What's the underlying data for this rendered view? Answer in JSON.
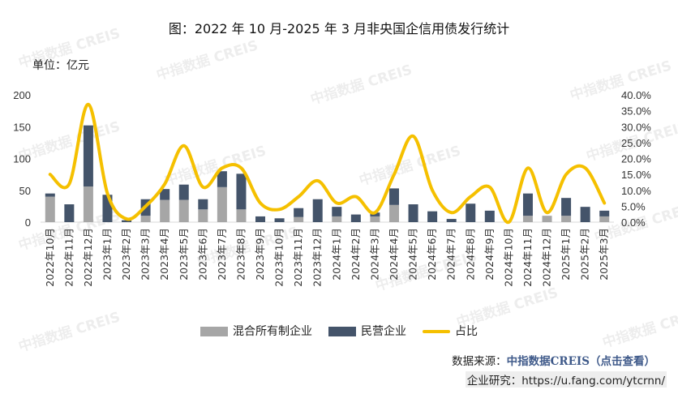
{
  "title": "图：2022 年 10 月-2025 年 3 月非央国企信用债发行统计",
  "unit_label": "单位：亿元",
  "watermark": "中指数据 CREIS",
  "chart_data": {
    "type": "bar+line",
    "title": "图：2022 年 10 月-2025 年 3 月非央国企信用债发行统计",
    "categories": [
      "2022年10月",
      "2022年11月",
      "2022年12月",
      "2023年1月",
      "2023年2月",
      "2023年3月",
      "2023年4月",
      "2023年5月",
      "2023年6月",
      "2023年7月",
      "2023年8月",
      "2023年9月",
      "2023年10月",
      "2023年11月",
      "2023年12月",
      "2024年1月",
      "2024年2月",
      "2024年3月",
      "2024年4月",
      "2024年5月",
      "2024年6月",
      "2024年7月",
      "2024年8月",
      "2024年9月",
      "2024年10月",
      "2024年11月",
      "2024年12月",
      "2025年1月",
      "2025年2月",
      "2025年3月"
    ],
    "series": [
      {
        "name": "混合所有制企业",
        "type": "stacked-bar",
        "axis": "left",
        "color": "#a6a6a6",
        "values": [
          40,
          0,
          56,
          0,
          0,
          10,
          35,
          35,
          20,
          55,
          20,
          0,
          0,
          8,
          0,
          9,
          0,
          9,
          27,
          0,
          0,
          0,
          0,
          0,
          0,
          10,
          10,
          10,
          0,
          9
        ]
      },
      {
        "name": "民营企业",
        "type": "stacked-bar",
        "axis": "left",
        "color": "#44546a",
        "values": [
          5,
          28,
          96,
          43,
          3,
          26,
          17,
          24,
          16,
          25,
          56,
          9,
          6,
          14,
          36,
          15,
          12,
          6,
          26,
          28,
          17,
          5,
          29,
          18,
          0,
          35,
          0,
          28,
          24,
          9
        ]
      },
      {
        "name": "占比",
        "type": "line",
        "axis": "right",
        "color": "#f5c000",
        "values": [
          15,
          12,
          37,
          9,
          1,
          5,
          12,
          24,
          11,
          17,
          17,
          6,
          4,
          8,
          13,
          6,
          8,
          3,
          15,
          27,
          10,
          3,
          8,
          11,
          0,
          17,
          3,
          15,
          17,
          6
        ]
      }
    ],
    "y_left": {
      "range": [
        0,
        200
      ],
      "ticks": [
        "0",
        "50",
        "100",
        "150",
        "200"
      ],
      "unit": "亿元"
    },
    "y_right": {
      "range": [
        0,
        40
      ],
      "ticks": [
        "0.0%",
        "5.0%",
        "10.0%",
        "15.0%",
        "20.0%",
        "25.0%",
        "30.0%",
        "35.0%",
        "40.0%"
      ]
    },
    "grid": false,
    "legend": "bottom"
  },
  "legend": {
    "mixed": "混合所有制企业",
    "private": "民营企业",
    "ratio": "占比"
  },
  "footer": {
    "source_label": "数据来源：",
    "source_link": "中指数据CREIS（点击查看）",
    "research": "企业研究：https://u.fang.com/ytcrnn/"
  }
}
